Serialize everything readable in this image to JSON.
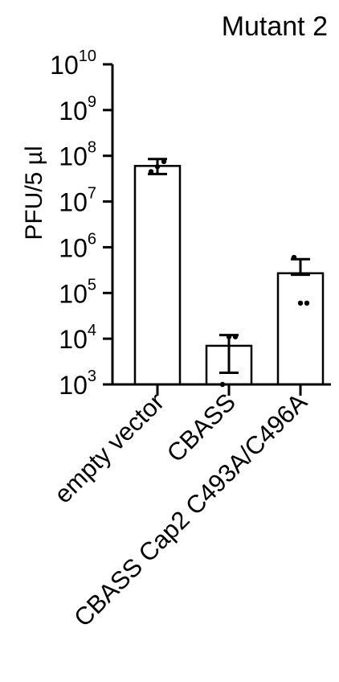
{
  "chart_data": {
    "type": "bar",
    "title": "Mutant 2",
    "ylabel": "PFU/5 µl",
    "yscale": "log",
    "ylim": [
      1000,
      10000000000
    ],
    "y_ticks": [
      {
        "base": "10",
        "exp": "3"
      },
      {
        "base": "10",
        "exp": "4"
      },
      {
        "base": "10",
        "exp": "5"
      },
      {
        "base": "10",
        "exp": "6"
      },
      {
        "base": "10",
        "exp": "7"
      },
      {
        "base": "10",
        "exp": "8"
      },
      {
        "base": "10",
        "exp": "9"
      },
      {
        "base": "10",
        "exp": "10"
      }
    ],
    "categories": [
      "empty vector",
      "CBASS",
      "CBASS Cap2 C493A/C496A"
    ],
    "values": [
      60000000,
      7000,
      270000
    ],
    "error_low": [
      40000000,
      1800,
      250000
    ],
    "error_high": [
      85000000,
      12000,
      550000
    ],
    "points": [
      [
        45000000,
        58000000,
        75000000
      ],
      [
        1000,
        11000,
        11000
      ],
      [
        600000,
        60000,
        60000
      ]
    ],
    "grid": false,
    "legend": "none"
  }
}
